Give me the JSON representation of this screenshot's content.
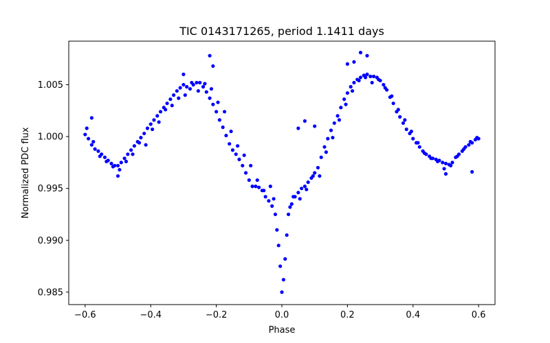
{
  "chart_data": {
    "type": "scatter",
    "title": "TIC 0143171265, period 1.1411 days",
    "xlabel": "Phase",
    "ylabel": "Normalized PDC flux",
    "xlim": [
      -0.65,
      0.65
    ],
    "ylim": [
      0.9838,
      1.0092
    ],
    "xticks": [
      -0.6,
      -0.4,
      -0.2,
      0.0,
      0.2,
      0.4,
      0.6
    ],
    "xtick_labels": [
      "−0.6",
      "−0.4",
      "−0.2",
      "0.0",
      "0.2",
      "0.4",
      "0.6"
    ],
    "yticks": [
      0.985,
      0.99,
      0.995,
      1.0,
      1.005
    ],
    "ytick_labels": [
      "0.985",
      "0.990",
      "0.995",
      "1.000",
      "1.005"
    ],
    "grid": false,
    "marker_color": "#0000ff",
    "series": [
      {
        "x": [
          -0.6,
          -0.59,
          -0.58,
          -0.57,
          -0.56,
          -0.55,
          -0.54,
          -0.53,
          -0.52,
          -0.51,
          -0.5,
          -0.49,
          -0.48,
          -0.47,
          -0.46,
          -0.45,
          -0.44,
          -0.43,
          -0.42,
          -0.41,
          -0.4,
          -0.39,
          -0.38,
          -0.37,
          -0.36,
          -0.35,
          -0.34,
          -0.33,
          -0.32,
          -0.31,
          -0.3,
          -0.29,
          -0.28,
          -0.27,
          -0.26,
          -0.25,
          -0.24,
          -0.23,
          -0.22,
          -0.21,
          -0.2,
          -0.19,
          -0.18,
          -0.17,
          -0.16,
          -0.15,
          -0.14,
          -0.13,
          -0.12,
          -0.11,
          -0.1,
          -0.09,
          -0.08,
          -0.07,
          -0.06,
          -0.05,
          -0.04,
          -0.03,
          -0.02,
          -0.015,
          -0.01,
          -0.005,
          0.0,
          0.005,
          0.01,
          0.015,
          0.02,
          0.03,
          0.04,
          0.05,
          0.06,
          0.07,
          0.08,
          0.09,
          0.1,
          0.11,
          0.12,
          0.13,
          0.14,
          0.15,
          0.16,
          0.17,
          0.18,
          0.19,
          0.2,
          0.21,
          0.22,
          0.23,
          0.24,
          0.25,
          0.26,
          0.27,
          0.28,
          0.29,
          0.3,
          0.31,
          0.32,
          0.33,
          0.34,
          0.35,
          0.36,
          0.37,
          0.38,
          0.39,
          0.4,
          0.41,
          0.42,
          0.43,
          0.44,
          0.45,
          0.46,
          0.47,
          0.48,
          0.49,
          0.5,
          0.51,
          0.52,
          0.53,
          0.54,
          0.55,
          0.56,
          0.57,
          0.58,
          0.59,
          0.6,
          -0.595,
          -0.575,
          -0.555,
          -0.535,
          -0.515,
          -0.495,
          -0.475,
          -0.455,
          -0.435,
          -0.415,
          -0.395,
          -0.375,
          -0.355,
          -0.335,
          -0.315,
          -0.295,
          -0.275,
          -0.255,
          -0.235,
          -0.215,
          -0.195,
          -0.175,
          -0.155,
          -0.135,
          -0.115,
          -0.095,
          -0.075,
          -0.055,
          -0.035,
          -0.025,
          0.025,
          0.035,
          0.055,
          0.075,
          0.095,
          0.115,
          0.135,
          0.155,
          0.175,
          0.195,
          0.215,
          0.235,
          0.255,
          0.275,
          0.295,
          0.315,
          0.335,
          0.355,
          0.375,
          0.395,
          0.415,
          0.435,
          0.455,
          0.475,
          0.495,
          0.515,
          0.535,
          0.555,
          0.575,
          0.595,
          -0.3,
          -0.22,
          -0.21,
          0.2,
          0.24,
          0.26,
          0.22,
          0.05,
          0.07,
          0.1,
          -0.5,
          0.5,
          -0.58,
          0.58
        ],
        "y": [
          1.0002,
          0.9998,
          0.9992,
          0.9988,
          0.9986,
          0.9983,
          0.998,
          0.9977,
          0.9974,
          0.9972,
          0.9972,
          0.9975,
          0.9979,
          0.9983,
          0.9987,
          0.9991,
          0.9995,
          0.9999,
          1.0003,
          1.0008,
          1.0012,
          1.0016,
          1.002,
          1.0024,
          1.0028,
          1.0032,
          1.0036,
          1.004,
          1.0044,
          1.0047,
          1.005,
          1.0048,
          1.0046,
          1.005,
          1.0052,
          1.0052,
          1.0048,
          1.0043,
          1.0037,
          1.0031,
          1.0024,
          1.0016,
          1.0009,
          1.0001,
          0.9993,
          0.9987,
          0.9983,
          0.9978,
          0.9972,
          0.9965,
          0.9958,
          0.9952,
          0.9952,
          0.9951,
          0.9948,
          0.9942,
          0.9938,
          0.9933,
          0.9925,
          0.991,
          0.9895,
          0.9875,
          0.985,
          0.9862,
          0.9882,
          0.9905,
          0.9925,
          0.9935,
          0.9942,
          0.9946,
          0.995,
          0.9952,
          0.9956,
          0.996,
          0.9965,
          0.997,
          0.998,
          0.999,
          0.9998,
          1.0006,
          1.0013,
          1.002,
          1.0028,
          1.0036,
          1.0042,
          1.0048,
          1.0052,
          1.0055,
          1.0057,
          1.0059,
          1.006,
          1.0058,
          1.0058,
          1.0057,
          1.0054,
          1.005,
          1.0045,
          1.0038,
          1.0032,
          1.0024,
          1.0019,
          1.0013,
          1.0007,
          1.0003,
          0.9998,
          0.9994,
          0.999,
          0.9986,
          0.9983,
          0.9981,
          0.9979,
          0.9978,
          0.9977,
          0.9975,
          0.9974,
          0.9973,
          0.9975,
          0.998,
          0.9983,
          0.9986,
          0.999,
          0.9992,
          0.9994,
          0.9997,
          0.9998,
          1.0008,
          0.9995,
          0.9981,
          0.9976,
          0.9971,
          0.9968,
          0.9976,
          0.9983,
          0.9994,
          0.9992,
          1.0007,
          1.0014,
          1.0026,
          1.003,
          1.0037,
          1.004,
          1.0052,
          1.0044,
          1.0051,
          1.0046,
          1.0033,
          1.0024,
          1.0005,
          0.9991,
          0.9982,
          0.9972,
          0.9958,
          0.9948,
          0.9952,
          0.994,
          0.9932,
          0.9942,
          0.994,
          0.9949,
          0.9962,
          0.9962,
          0.9985,
          0.9999,
          1.0016,
          1.0031,
          1.0044,
          1.0054,
          1.0057,
          1.0052,
          1.0055,
          1.0047,
          1.0039,
          1.0026,
          1.0016,
          1.0005,
          0.9994,
          0.9984,
          0.9979,
          0.9976,
          0.9969,
          0.9972,
          0.9981,
          0.9988,
          0.9995,
          0.9999,
          1.006,
          1.0078,
          1.0068,
          1.007,
          1.0081,
          1.0078,
          1.0072,
          1.0008,
          1.0015,
          1.001,
          0.9962,
          0.9964,
          1.0018,
          0.9966
        ]
      }
    ]
  }
}
